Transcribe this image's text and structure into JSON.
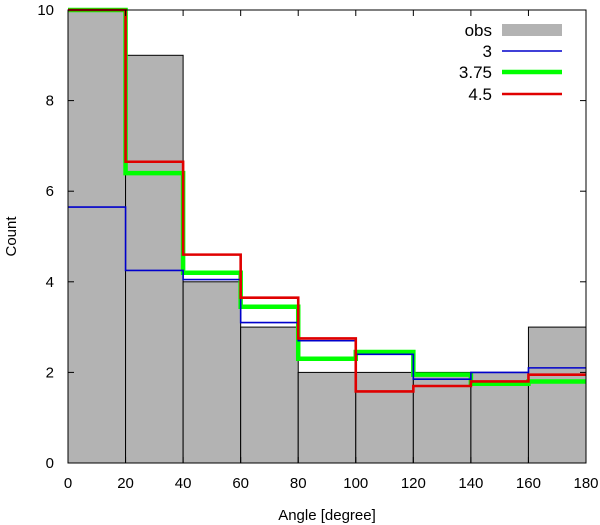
{
  "chart_data": {
    "type": "bar",
    "title": "",
    "xlabel": "Angle [degree]",
    "ylabel": "Count",
    "xlim": [
      0,
      180
    ],
    "ylim": [
      0,
      10
    ],
    "x_ticks": [
      0,
      20,
      40,
      60,
      80,
      100,
      120,
      140,
      160,
      180
    ],
    "y_ticks": [
      0,
      2,
      4,
      6,
      8,
      10
    ],
    "bin_edges": [
      0,
      20,
      40,
      60,
      80,
      100,
      120,
      140,
      160,
      180
    ],
    "grid": false,
    "legend_position": "top-right",
    "series": [
      {
        "name": "obs",
        "type": "histogram",
        "color": "#b3b3b3",
        "values": [
          10,
          9,
          4,
          3,
          2,
          2,
          2,
          2,
          3
        ]
      },
      {
        "name": "3",
        "type": "step",
        "color": "#0000cc",
        "values": [
          5.65,
          4.25,
          4.05,
          3.1,
          2.7,
          2.4,
          1.85,
          2.0,
          2.1
        ]
      },
      {
        "name": "3.75",
        "type": "step",
        "color": "#00ff00",
        "values": [
          10,
          6.4,
          4.2,
          3.45,
          2.3,
          2.45,
          1.95,
          1.75,
          1.8
        ]
      },
      {
        "name": "4.5",
        "type": "step",
        "color": "#e00000",
        "values": [
          10,
          6.65,
          4.6,
          3.65,
          2.75,
          1.58,
          1.7,
          1.8,
          1.95
        ]
      }
    ]
  }
}
